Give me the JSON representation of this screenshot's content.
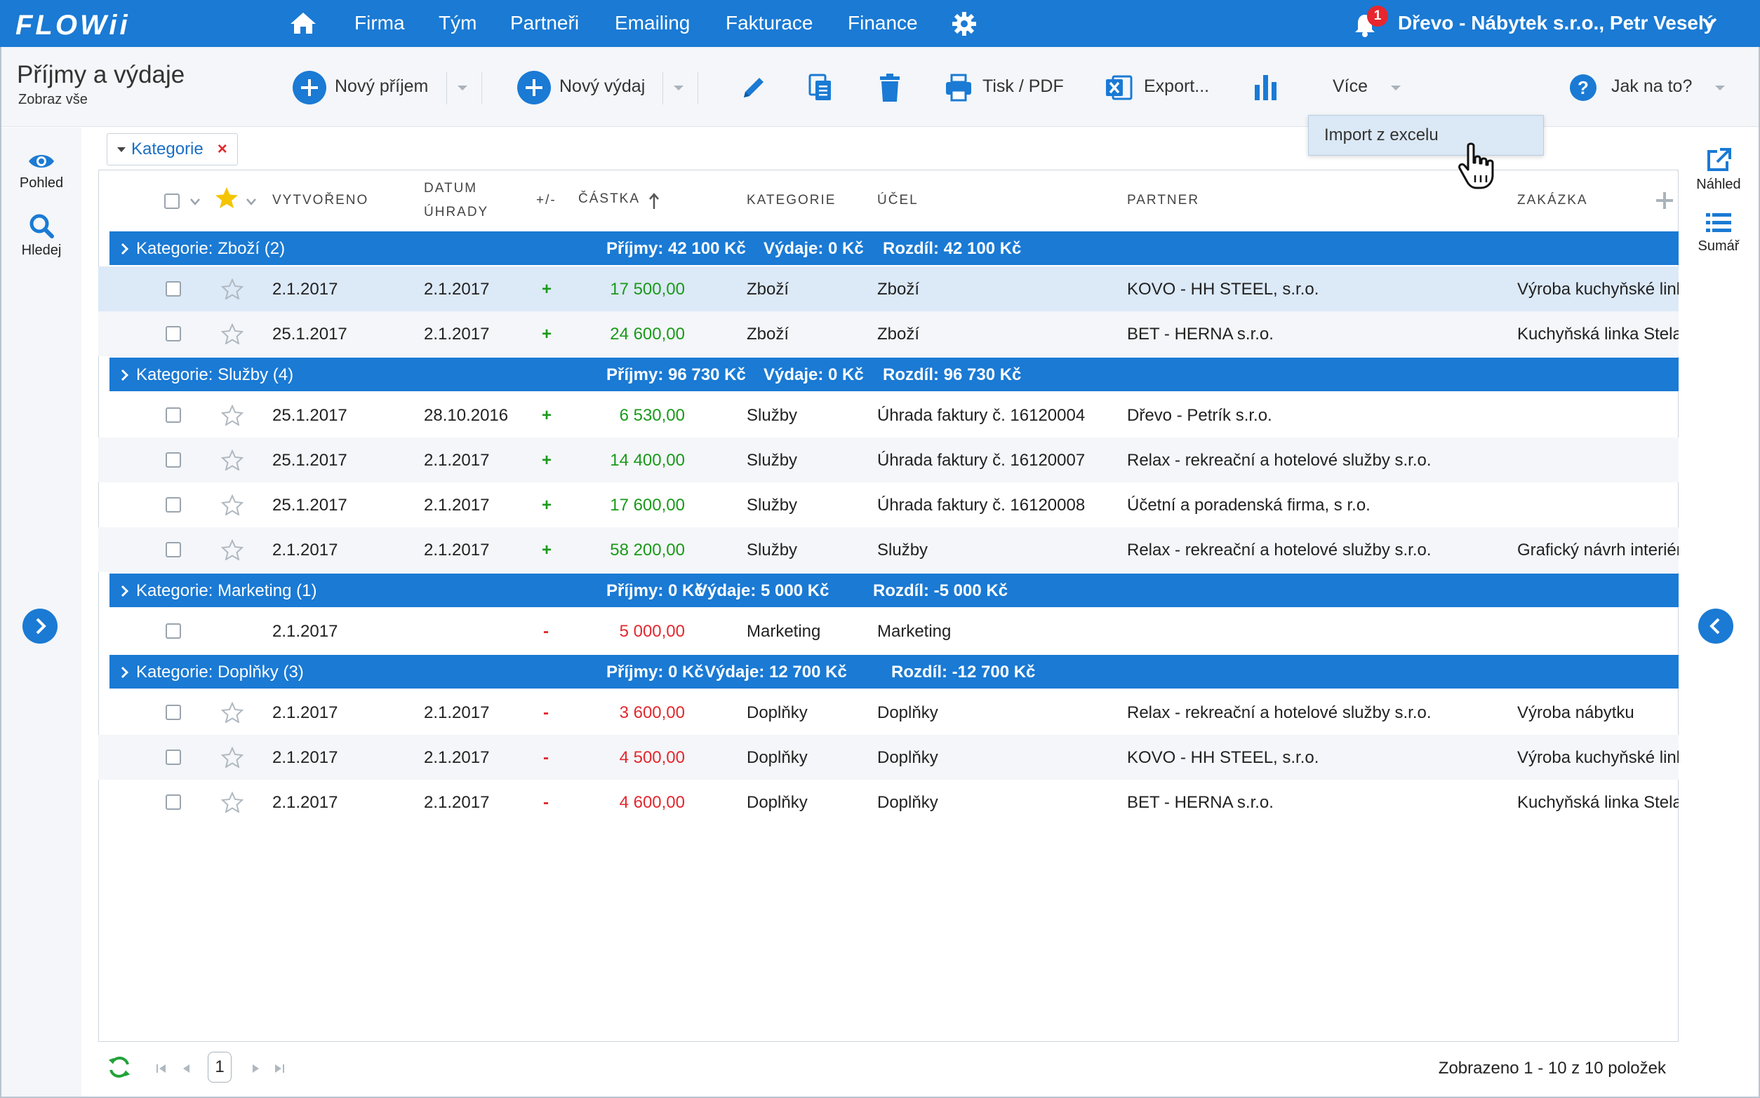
{
  "app": {
    "logo": "FLOWii",
    "nav": [
      "Firma",
      "Tým",
      "Partneři",
      "Emailing",
      "Fakturace",
      "Finance"
    ],
    "notification_count": "1",
    "company_user": "Dřevo - Nábytek s.r.o., Petr Veselý",
    "accent": "#1a7ad4"
  },
  "toolbar": {
    "title": "Příjmy a výdaje",
    "subtitle": "Zobraz vše",
    "new_income": "Nový příjem",
    "new_expense": "Nový výdaj",
    "print_pdf": "Tisk / PDF",
    "export": "Export...",
    "more": "Více",
    "help": "Jak na to?"
  },
  "dropdown": {
    "items": [
      "Import z excelu"
    ]
  },
  "left_sidebar": {
    "view": "Pohled",
    "search": "Hledej"
  },
  "right_sidebar": {
    "preview": "Náhled",
    "summary": "Sumář"
  },
  "filter": {
    "chip": "Kategorie",
    "remove": "×"
  },
  "columns": {
    "created": "VYTVOŘENO",
    "due_line1": "DATUM",
    "due_line2": "ÚHRADY",
    "sign": "+/-",
    "amount": "ČÁSTKA",
    "category": "KATEGORIE",
    "purpose": "ÚČEL",
    "partner": "PARTNER",
    "order": "ZAKÁZKA"
  },
  "groups": [
    {
      "title": "Kategorie: Zboží (2)",
      "income": "Příjmy: 42 100 Kč",
      "expense": "Výdaje: 0 Kč",
      "diff": "Rozdíl: 42 100 Kč",
      "rows": [
        {
          "created": "2.1.2017",
          "due": "2.1.2017",
          "sign": "+",
          "amount": "17 500,00",
          "category": "Zboží",
          "purpose": "Zboží",
          "partner": "KOVO - HH STEEL, s.r.o.",
          "order": "Výroba kuchyňské linky"
        },
        {
          "created": "25.1.2017",
          "due": "2.1.2017",
          "sign": "+",
          "amount": "24 600,00",
          "category": "Zboží",
          "purpose": "Zboží",
          "partner": "BET - HERNA s.r.o.",
          "order": "Kuchyňská linka Stela"
        }
      ]
    },
    {
      "title": "Kategorie: Služby (4)",
      "income": "Příjmy: 96 730 Kč",
      "expense": "Výdaje: 0 Kč",
      "diff": "Rozdíl: 96 730 Kč",
      "rows": [
        {
          "created": "25.1.2017",
          "due": "28.10.2016",
          "sign": "+",
          "amount": "6 530,00",
          "category": "Služby",
          "purpose": "Úhrada faktury č. 16120004",
          "partner": "Dřevo - Petrík s.r.o.",
          "order": ""
        },
        {
          "created": "25.1.2017",
          "due": "2.1.2017",
          "sign": "+",
          "amount": "14 400,00",
          "category": "Služby",
          "purpose": "Úhrada faktury č. 16120007",
          "partner": "Relax - rekreační a hotelové služby s.r.o.",
          "order": ""
        },
        {
          "created": "25.1.2017",
          "due": "2.1.2017",
          "sign": "+",
          "amount": "17 600,00",
          "category": "Služby",
          "purpose": "Úhrada faktury č. 16120008",
          "partner": "Účetní a poradenská firma, s r.o.",
          "order": ""
        },
        {
          "created": "2.1.2017",
          "due": "2.1.2017",
          "sign": "+",
          "amount": "58 200,00",
          "category": "Služby",
          "purpose": "Služby",
          "partner": "Relax - rekreační a hotelové služby s.r.o.",
          "order": "Grafický návrh interiéru"
        }
      ]
    },
    {
      "title": "Kategorie: Marketing (1)",
      "income": "Příjmy: 0 Kč",
      "expense": "Výdaje: 5 000 Kč",
      "diff": "Rozdíl: -5 000 Kč",
      "rows": [
        {
          "created": "2.1.2017",
          "due": "",
          "sign": "-",
          "amount": "5 000,00",
          "category": "Marketing",
          "purpose": "Marketing",
          "partner": "",
          "order": ""
        }
      ]
    },
    {
      "title": "Kategorie: Doplňky (3)",
      "income": "Příjmy: 0 Kč",
      "expense": "Výdaje: 12 700 Kč",
      "diff": "Rozdíl: -12 700 Kč",
      "rows": [
        {
          "created": "2.1.2017",
          "due": "2.1.2017",
          "sign": "-",
          "amount": "3 600,00",
          "category": "Doplňky",
          "purpose": "Doplňky",
          "partner": "Relax - rekreační a hotelové služby s.r.o.",
          "order": "Výroba nábytku"
        },
        {
          "created": "2.1.2017",
          "due": "2.1.2017",
          "sign": "-",
          "amount": "4 500,00",
          "category": "Doplňky",
          "purpose": "Doplňky",
          "partner": "KOVO - HH STEEL, s.r.o.",
          "order": "Výroba kuchyňské linky"
        },
        {
          "created": "2.1.2017",
          "due": "2.1.2017",
          "sign": "-",
          "amount": "4 600,00",
          "category": "Doplňky",
          "purpose": "Doplňky",
          "partner": "BET - HERNA s.r.o.",
          "order": "Kuchyňská linka Stela"
        }
      ]
    }
  ],
  "footer": {
    "page": "1",
    "info": "Zobrazeno 1 - 10 z 10 položek"
  }
}
